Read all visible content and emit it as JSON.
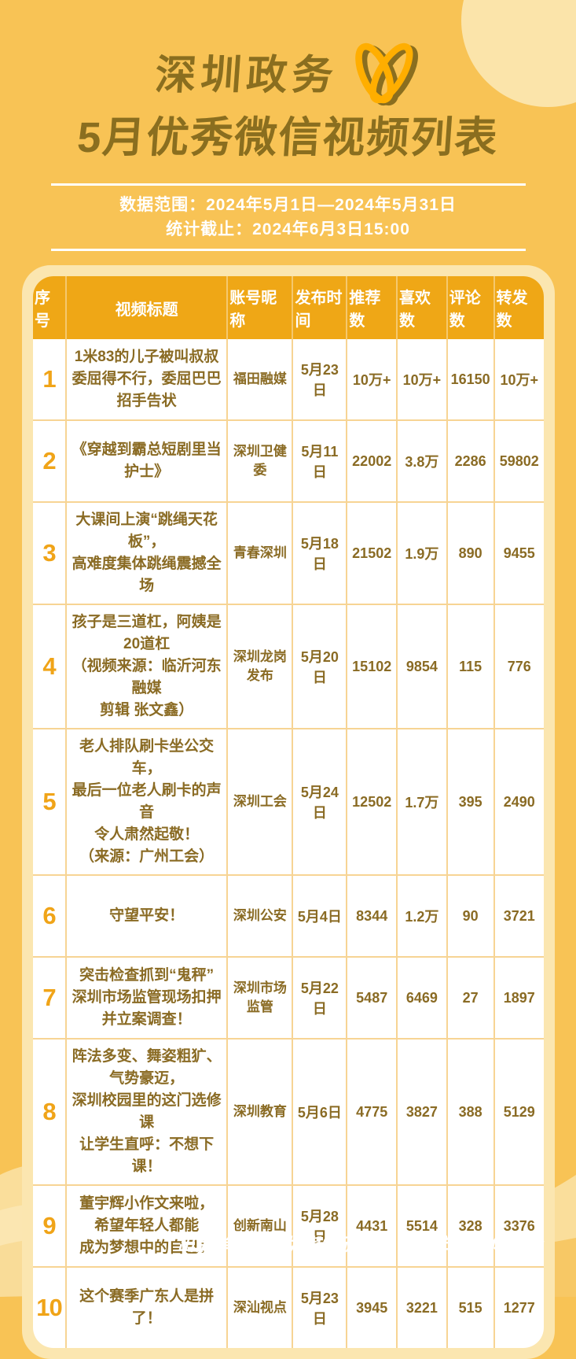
{
  "header": {
    "title_line1": "深圳政务",
    "title_line2": "5月优秀微信视频列表",
    "logo_icon": "wechat-channels-logo"
  },
  "meta": {
    "range": "数据范围：2024年5月1日—2024年5月31日",
    "cutoff": "统计截止：2024年6月3日15:00"
  },
  "chart_data": {
    "type": "table",
    "title": "深圳政务5月优秀微信视频列表",
    "columns": [
      "序号",
      "视频标题",
      "账号昵称",
      "发布时间",
      "推荐数",
      "喜欢数",
      "评论数",
      "转发数"
    ],
    "rows": [
      {
        "rank": "1",
        "title": "1米83的儿子被叫叔叔\n委屈得不行，委屈巴巴招手告状",
        "account": "福田融媒",
        "date": "5月23日",
        "recommends": "10万+",
        "likes": "10万+",
        "comments": "16150",
        "shares": "10万+"
      },
      {
        "rank": "2",
        "title": "《穿越到霸总短剧里当护士》",
        "account": "深圳卫健委",
        "date": "5月11日",
        "recommends": "22002",
        "likes": "3.8万",
        "comments": "2286",
        "shares": "59802"
      },
      {
        "rank": "3",
        "title": "大课间上演“跳绳天花板”，\n高难度集体跳绳震撼全场",
        "account": "青春深圳",
        "date": "5月18日",
        "recommends": "21502",
        "likes": "1.9万",
        "comments": "890",
        "shares": "9455"
      },
      {
        "rank": "4",
        "title": "孩子是三道杠，阿姨是20道杠\n（视频来源：临沂河东融媒\n剪辑 张文鑫）",
        "account": "深圳龙岗发布",
        "date": "5月20日",
        "recommends": "15102",
        "likes": "9854",
        "comments": "115",
        "shares": "776"
      },
      {
        "rank": "5",
        "title": "老人排队刷卡坐公交车，\n最后一位老人刷卡的声音\n令人肃然起敬！\n（来源：广州工会）",
        "account": "深圳工会",
        "date": "5月24日",
        "recommends": "12502",
        "likes": "1.7万",
        "comments": "395",
        "shares": "2490"
      },
      {
        "rank": "6",
        "title": "守望平安！",
        "account": "深圳公安",
        "date": "5月4日",
        "recommends": "8344",
        "likes": "1.2万",
        "comments": "90",
        "shares": "3721"
      },
      {
        "rank": "7",
        "title": "突击检查抓到“鬼秤”\n深圳市场监管现场扣押\n并立案调查！",
        "account": "深圳市场监管",
        "date": "5月22日",
        "recommends": "5487",
        "likes": "6469",
        "comments": "27",
        "shares": "1897"
      },
      {
        "rank": "8",
        "title": "阵法多变、舞姿粗犷、气势豪迈，\n深圳校园里的这门选修课\n让学生直呼：不想下课！",
        "account": "深圳教育",
        "date": "5月6日",
        "recommends": "4775",
        "likes": "3827",
        "comments": "388",
        "shares": "5129"
      },
      {
        "rank": "9",
        "title": "董宇辉小作文来啦，\n希望年轻人都能\n成为梦想中的自己！",
        "account": "创新南山",
        "date": "5月28日",
        "recommends": "4431",
        "likes": "5514",
        "comments": "328",
        "shares": "3376"
      },
      {
        "rank": "10",
        "title": "这个赛季广东人是拼了！",
        "account": "深汕视点",
        "date": "5月23日",
        "recommends": "3945",
        "likes": "3221",
        "comments": "515",
        "shares": "1277"
      }
    ]
  },
  "footer": {
    "credit": "出品单位 | 深圳舆情研究院 深圳市自媒体协会"
  },
  "colors": {
    "background": "#F8C355",
    "cream_panel": "#FBE6B0",
    "header_orange": "#EFA716",
    "text_brown": "#8A6B24",
    "title_olive": "#8A6E1F",
    "rank_orange": "#F0A418",
    "grid_line": "#F7D494",
    "logo_gold": "#FFAE00",
    "white": "#FFFFFF"
  }
}
